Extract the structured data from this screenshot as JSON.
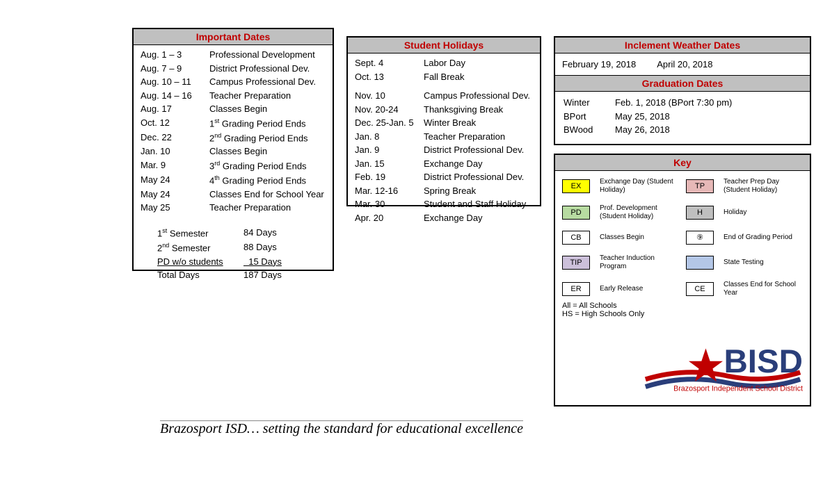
{
  "importantDates": {
    "title": "Important Dates",
    "rows": [
      {
        "date": "Aug. 1 – 3",
        "desc": "Professional Development"
      },
      {
        "date": "Aug. 7 – 9",
        "desc": "District Professional Dev."
      },
      {
        "date": "Aug. 10 – 11",
        "desc": "Campus Professional Dev."
      },
      {
        "date": "Aug. 14 – 16",
        "desc": "Teacher Preparation"
      },
      {
        "date": "Aug. 17",
        "desc": "Classes Begin"
      },
      {
        "date": "Oct. 12",
        "desc_html": "1<span class='sup'>st</span> Grading Period Ends"
      },
      {
        "date": "Dec. 22",
        "desc_html": "2<span class='sup'>nd</span> Grading Period Ends"
      },
      {
        "date": "Jan. 10",
        "desc": "Classes Begin"
      },
      {
        "date": "Mar. 9",
        "desc_html": "3<span class='sup'>rd</span> Grading Period Ends"
      },
      {
        "date": "May 24",
        "desc_html": "4<span class='sup'>th</span> Grading Period Ends"
      },
      {
        "date": "May 24",
        "desc": "Classes End for School Year"
      },
      {
        "date": "May 25",
        "desc": "Teacher Preparation"
      }
    ],
    "semester": [
      {
        "label_html": "1<span class='sup'>st</span> Semester",
        "days": "84 Days",
        "under": false
      },
      {
        "label_html": "2<span class='sup'>nd</span> Semester",
        "days": "88 Days",
        "under": false
      },
      {
        "label_html": "<span class='under'>PD w/o students</span>",
        "days": "<span class='under'>&nbsp; 15 Days</span>",
        "under": true
      },
      {
        "label_html": "Total Days",
        "days": "187 Days",
        "under": false
      }
    ]
  },
  "studentHolidays": {
    "title": "Student Holidays",
    "rows": [
      {
        "date": "Sept. 4",
        "desc": "Labor Day"
      },
      {
        "date": "Oct. 13",
        "desc": "Fall Break"
      },
      {
        "date": "Nov. 10",
        "desc": "Campus Professional Dev."
      },
      {
        "date": "Nov. 20-24",
        "desc": "Thanksgiving Break"
      },
      {
        "date": "Dec. 25-Jan. 5",
        "desc": "Winter Break"
      },
      {
        "date": "Jan. 8",
        "desc": "Teacher Preparation"
      },
      {
        "date": "Jan. 9",
        "desc": "District Professional Dev."
      },
      {
        "date": "Jan. 15",
        "desc": "Exchange Day"
      },
      {
        "date": "Feb. 19",
        "desc": "District Professional Dev."
      },
      {
        "date": "Mar. 12-16",
        "desc": "Spring Break"
      },
      {
        "date": "Mar. 30",
        "desc": "Student and Staff Holiday"
      },
      {
        "date": "Apr. 20",
        "desc": "Exchange Day"
      }
    ]
  },
  "inclement": {
    "title": "Inclement Weather Dates",
    "d1": "February 19, 2018",
    "d2": "April 20, 2018"
  },
  "graduation": {
    "title": "Graduation Dates",
    "rows": [
      {
        "label": "Winter",
        "val": "Feb. 1, 2018 (BPort 7:30 pm)"
      },
      {
        "label": "BPort",
        "val": "May 25, 2018"
      },
      {
        "label": "BWood",
        "val": "May 26, 2018"
      }
    ]
  },
  "key": {
    "title": "Key",
    "items": [
      {
        "code": "EX",
        "bg": "#ffff00",
        "label": "Exchange Day (Student Holiday)"
      },
      {
        "code": "TP",
        "bg": "#e6b8b7",
        "label": "Teacher Prep Day (Student Holiday)"
      },
      {
        "code": "PD",
        "bg": "#b7dba1",
        "label": "Prof. Development (Student Holiday)"
      },
      {
        "code": "H",
        "bg": "#bfbfbf",
        "label": "Holiday"
      },
      {
        "code": "CB",
        "bg": "#ffffff",
        "label": "Classes Begin"
      },
      {
        "code": "⑨",
        "bg": "#ffffff",
        "label": "End of Grading Period"
      },
      {
        "code": "TIP",
        "bg": "#ccc0da",
        "label": "Teacher Induction Program"
      },
      {
        "code": "",
        "bg": "#b4c7e7",
        "label": "State Testing"
      },
      {
        "code": "ER",
        "bg": "#ffffff",
        "label": "Early Release"
      },
      {
        "code": "CE",
        "bg": "#ffffff",
        "label": "Classes End for School Year"
      }
    ],
    "note1": "All = All Schools",
    "note2": "HS = High Schools Only"
  },
  "logo": {
    "big": "BISD",
    "sub": "Brazosport Independent School District",
    "colors": {
      "text": "#2a3e7a",
      "sub": "#c00000",
      "star": "#c00000",
      "wave1": "#c00000",
      "wave2": "#2a3e7a"
    }
  },
  "tagline": "Brazosport ISD… setting the standard for educational excellence"
}
